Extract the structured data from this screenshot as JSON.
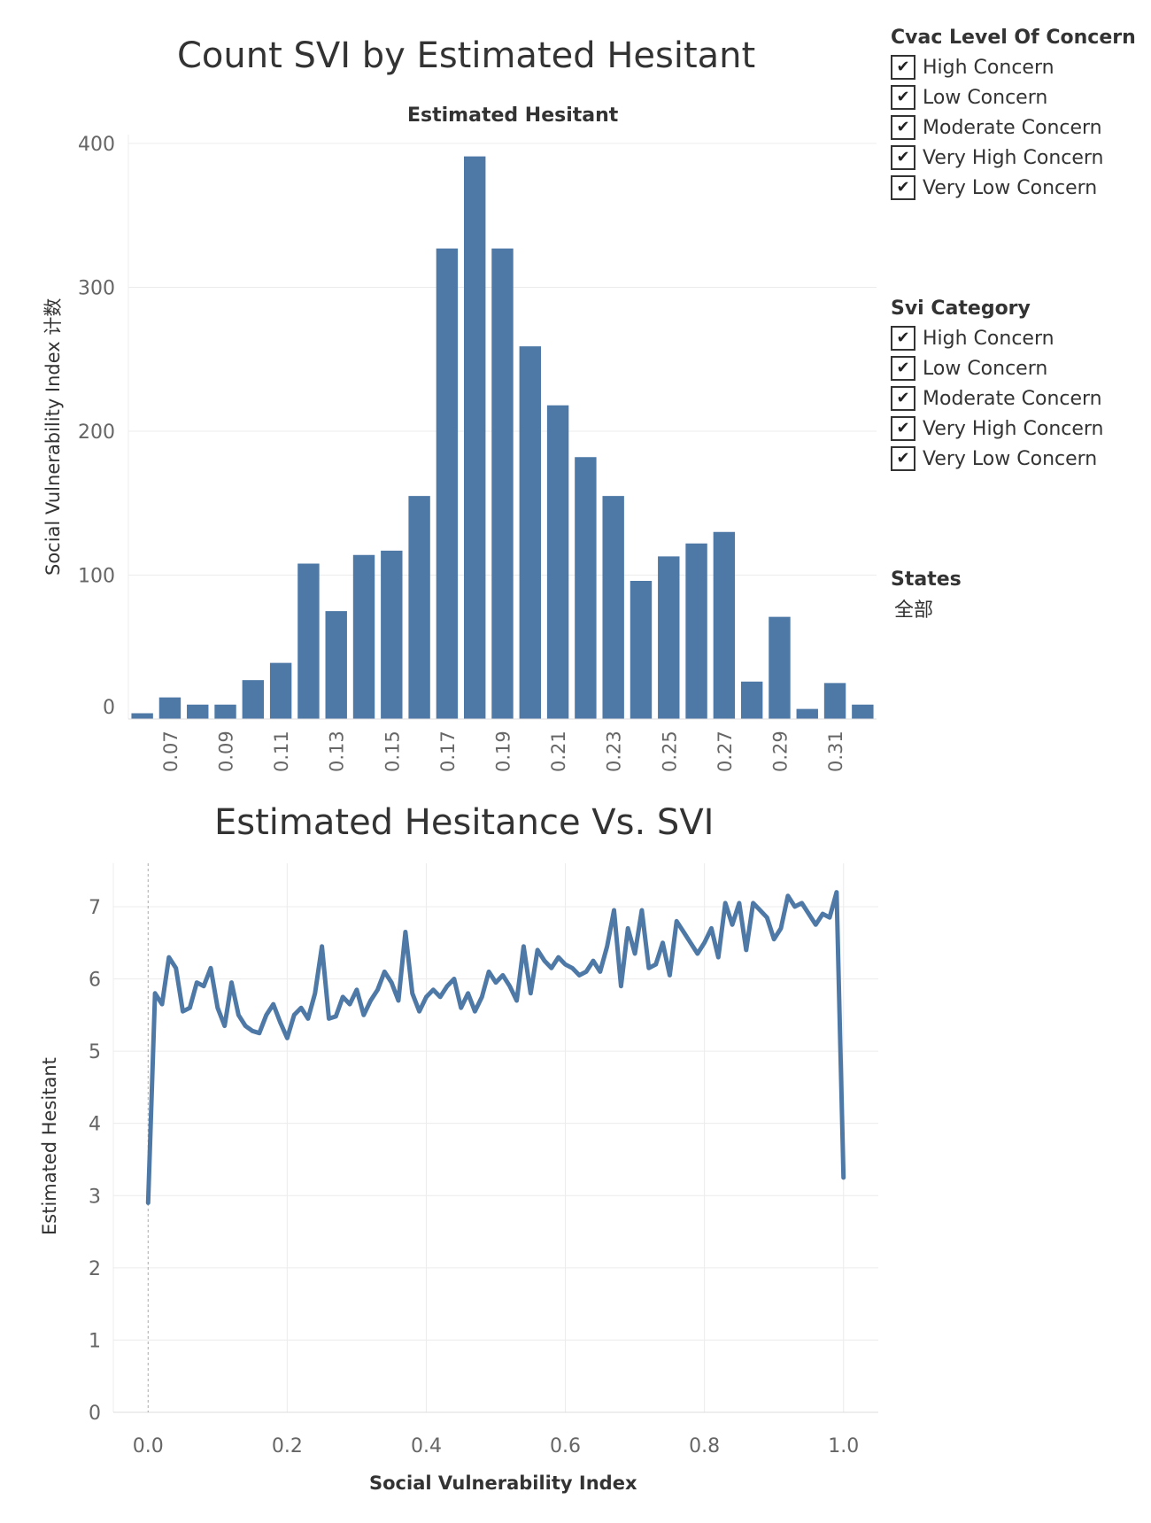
{
  "chart_data": [
    {
      "type": "bar",
      "title": "Count SVI by Estimated Hesitant",
      "subtitle": "Estimated Hesitant",
      "xlabel": "",
      "ylabel": "Social Vulnerability Index 计数",
      "ylim": [
        0,
        400
      ],
      "yticks": [
        0,
        100,
        200,
        300,
        400
      ],
      "categories": [
        "0.06",
        "0.07",
        "0.08",
        "0.09",
        "0.10",
        "0.11",
        "0.12",
        "0.13",
        "0.14",
        "0.15",
        "0.16",
        "0.17",
        "0.18",
        "0.19",
        "0.20",
        "0.21",
        "0.22",
        "0.23",
        "0.24",
        "0.25",
        "0.26",
        "0.27",
        "0.28",
        "0.29",
        "0.30",
        "0.31",
        "0.32"
      ],
      "tick_labels": [
        "0.07",
        "0.09",
        "0.11",
        "0.13",
        "0.15",
        "0.17",
        "0.19",
        "0.21",
        "0.23",
        "0.25",
        "0.27",
        "0.29",
        "0.31"
      ],
      "values": [
        4,
        15,
        10,
        10,
        27,
        39,
        108,
        75,
        114,
        117,
        155,
        327,
        391,
        327,
        259,
        218,
        182,
        155,
        96,
        113,
        122,
        130,
        26,
        71,
        7,
        25,
        10
      ],
      "color": "#4e79a7",
      "grid": true
    },
    {
      "type": "line",
      "title": "Estimated Hesitance Vs. SVI",
      "xlabel": "Social Vulnerability Index",
      "ylabel": "Estimated Hesitant",
      "xlim": [
        -0.05,
        1.05
      ],
      "ylim": [
        0,
        7.6
      ],
      "xticks": [
        "0.0",
        "0.2",
        "0.4",
        "0.6",
        "0.8",
        "1.0"
      ],
      "yticks": [
        "0",
        "1",
        "2",
        "3",
        "4",
        "5",
        "6",
        "7"
      ],
      "color": "#4e79a7",
      "grid": true,
      "x": [
        0.0,
        0.01,
        0.02,
        0.03,
        0.04,
        0.05,
        0.06,
        0.07,
        0.08,
        0.09,
        0.1,
        0.11,
        0.12,
        0.13,
        0.14,
        0.15,
        0.16,
        0.17,
        0.18,
        0.19,
        0.2,
        0.21,
        0.22,
        0.23,
        0.24,
        0.25,
        0.26,
        0.27,
        0.28,
        0.29,
        0.3,
        0.31,
        0.32,
        0.33,
        0.34,
        0.35,
        0.36,
        0.37,
        0.38,
        0.39,
        0.4,
        0.41,
        0.42,
        0.43,
        0.44,
        0.45,
        0.46,
        0.47,
        0.48,
        0.49,
        0.5,
        0.51,
        0.52,
        0.53,
        0.54,
        0.55,
        0.56,
        0.57,
        0.58,
        0.59,
        0.6,
        0.61,
        0.62,
        0.63,
        0.64,
        0.65,
        0.66,
        0.67,
        0.68,
        0.69,
        0.7,
        0.71,
        0.72,
        0.73,
        0.74,
        0.75,
        0.76,
        0.77,
        0.78,
        0.79,
        0.8,
        0.81,
        0.82,
        0.83,
        0.84,
        0.85,
        0.86,
        0.87,
        0.88,
        0.89,
        0.9,
        0.91,
        0.92,
        0.93,
        0.94,
        0.95,
        0.96,
        0.97,
        0.98,
        0.99,
        1.0
      ],
      "y": [
        2.9,
        5.8,
        5.65,
        6.3,
        6.15,
        5.55,
        5.6,
        5.95,
        5.9,
        6.15,
        5.6,
        5.35,
        5.95,
        5.5,
        5.35,
        5.28,
        5.25,
        5.5,
        5.65,
        5.4,
        5.18,
        5.5,
        5.6,
        5.45,
        5.8,
        6.45,
        5.45,
        5.48,
        5.75,
        5.65,
        5.85,
        5.5,
        5.7,
        5.85,
        6.1,
        5.95,
        5.7,
        6.65,
        5.8,
        5.55,
        5.75,
        5.85,
        5.75,
        5.9,
        6.0,
        5.6,
        5.8,
        5.55,
        5.75,
        6.1,
        5.95,
        6.05,
        5.9,
        5.7,
        6.45,
        5.8,
        6.4,
        6.25,
        6.15,
        6.3,
        6.2,
        6.15,
        6.05,
        6.1,
        6.25,
        6.1,
        6.45,
        6.95,
        5.9,
        6.7,
        6.35,
        6.95,
        6.15,
        6.2,
        6.5,
        6.05,
        6.8,
        6.65,
        6.5,
        6.35,
        6.5,
        6.7,
        6.3,
        7.05,
        6.75,
        7.05,
        6.4,
        7.05,
        6.95,
        6.85,
        6.55,
        6.7,
        7.15,
        7.0,
        7.05,
        6.9,
        6.75,
        6.9,
        6.85,
        7.2,
        3.25
      ]
    }
  ],
  "legends": {
    "cvac": {
      "title": "Cvac Level Of Concern",
      "items": [
        "High Concern",
        "Low Concern",
        "Moderate Concern",
        "Very High Concern",
        "Very Low Concern"
      ]
    },
    "svi": {
      "title": "Svi Category",
      "items": [
        "High Concern",
        "Low Concern",
        "Moderate Concern",
        "Very High Concern",
        "Very Low Concern"
      ]
    },
    "states": {
      "title": "States",
      "value": "全部"
    },
    "check_glyph": "✔"
  }
}
